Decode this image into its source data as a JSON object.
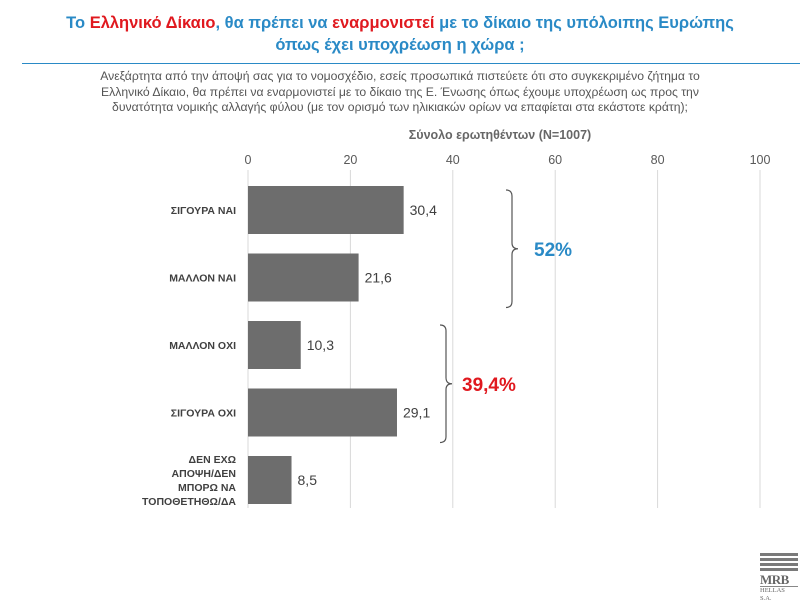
{
  "header": {
    "title_parts": [
      {
        "text": "Το ",
        "color": "blue"
      },
      {
        "text": "Ελληνικό Δίκαιο",
        "color": "red"
      },
      {
        "text": ", θα πρέπει να ",
        "color": "blue"
      },
      {
        "text": "εναρμονιστεί",
        "color": "red"
      },
      {
        "text": " με το δίκαιο της υπόλοιπης Ευρώπης",
        "color": "blue"
      }
    ],
    "title_line2": "όπως έχει υποχρέωση η χώρα ;",
    "question_lines": [
      "Ανεξάρτητα από την άποψή σας για το νομοσχέδιο, εσείς προσωπικά πιστεύετε ότι στο συγκεκριμένο ζήτημα το",
      "Ελληνικό Δίκαιο, θα πρέπει να εναρμονιστεί με το δίκαιο της Ε. Ένωσης όπως έχουμε υποχρέωση ως προς την",
      "δυνατότητα νομικής αλλαγής φύλου (με τον ορισμό των ηλικιακών ορίων να επαφίεται στα εκάστοτε κράτη);"
    ]
  },
  "chart_data": {
    "type": "bar",
    "orientation": "horizontal",
    "title": "Σύνολο ερωτηθέντων (N=1007)",
    "categories": [
      [
        "ΣΙΓΟΥΡΑ ΝΑΙ"
      ],
      [
        "ΜΑΛΛΟΝ ΝΑΙ"
      ],
      [
        "ΜΑΛΛΟΝ ΟΧΙ"
      ],
      [
        "ΣΙΓΟΥΡΑ ΟΧΙ"
      ],
      [
        "ΔΕΝ ΕΧΩ",
        "ΑΠΟΨΗ/ΔΕΝ",
        "ΜΠΟΡΩ ΝΑ",
        "ΤΟΠΟΘΕΤΗΘΩ/ΔΑ"
      ]
    ],
    "values": [
      30.4,
      21.6,
      10.3,
      29.1,
      8.5
    ],
    "value_labels": [
      "30,4",
      "21,6",
      "10,3",
      "29,1",
      "8,5"
    ],
    "xlim": [
      0,
      100
    ],
    "xticks": [
      0,
      20,
      40,
      60,
      80,
      100
    ],
    "grid": true,
    "bar_color": "#6d6d6d",
    "annotations": [
      {
        "text": "52%",
        "groups": [
          0,
          1
        ],
        "color": "#2a8ac6"
      },
      {
        "text": "39,4%",
        "groups": [
          2,
          3
        ],
        "color": "#e0191f"
      }
    ]
  },
  "logo": {
    "text": "MRB",
    "subtext": "HELLAS S.A."
  },
  "colors": {
    "blue": "#2a8ac6",
    "red": "#e0191f",
    "gray_text": "#555555"
  }
}
